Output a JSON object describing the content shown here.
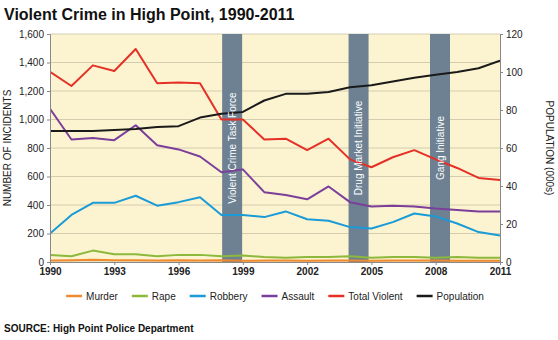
{
  "chart_data": {
    "type": "line",
    "title": "Violent Crime in High Point, 1990-2011",
    "y_label": "NUMBER OF INCIDENTS",
    "y2_label": "POPULATION (000s)",
    "source": "SOURCE: High Point Police Department",
    "x": [
      1990,
      1991,
      1992,
      1993,
      1994,
      1995,
      1996,
      1997,
      1998,
      1999,
      2000,
      2001,
      2002,
      2003,
      2004,
      2005,
      2006,
      2007,
      2008,
      2009,
      2010,
      2011
    ],
    "xlim": [
      1990,
      2011
    ],
    "xticks": [
      1990,
      1993,
      1996,
      1999,
      2002,
      2005,
      2008,
      2011
    ],
    "ylim": [
      0,
      1600
    ],
    "yticks": [
      0,
      200,
      400,
      600,
      800,
      {
        "value": 1000,
        "label": "1,000"
      },
      {
        "value": 1200,
        "label": "1,200"
      },
      {
        "value": 1400,
        "label": "1,400"
      },
      {
        "value": 1600,
        "label": "1,600"
      }
    ],
    "y2lim": [
      0,
      120
    ],
    "y2ticks": [
      0,
      20,
      40,
      60,
      80,
      100,
      120
    ],
    "grid": true,
    "legend": "bottom",
    "annotations": [
      {
        "text": "Violent Crime Task Force",
        "x": 1998.5
      },
      {
        "text": "Drug Market Initiative",
        "x": 2004.4
      },
      {
        "text": "Gang Initiative",
        "x": 2008.2
      }
    ],
    "series": [
      {
        "name": "Murder",
        "color": "#f08a2e",
        "values": [
          10,
          12,
          15,
          12,
          12,
          10,
          12,
          10,
          12,
          8,
          10,
          10,
          8,
          10,
          10,
          8,
          10,
          10,
          10,
          8,
          8,
          8
        ]
      },
      {
        "name": "Rape",
        "color": "#8cb83c",
        "values": [
          50,
          40,
          80,
          55,
          55,
          40,
          50,
          50,
          40,
          45,
          35,
          30,
          35,
          35,
          40,
          30,
          35,
          35,
          30,
          35,
          30,
          30
        ]
      },
      {
        "name": "Robbery",
        "color": "#1a9bd7",
        "values": [
          200,
          330,
          415,
          415,
          465,
          395,
          420,
          455,
          330,
          330,
          315,
          355,
          300,
          290,
          245,
          235,
          280,
          340,
          320,
          270,
          210,
          185
        ]
      },
      {
        "name": "Assault",
        "color": "#7b3f9b",
        "values": [
          1075,
          860,
          870,
          855,
          960,
          820,
          790,
          740,
          630,
          650,
          490,
          470,
          440,
          530,
          420,
          390,
          395,
          390,
          375,
          365,
          355,
          355
        ]
      },
      {
        "name": "Total Violent",
        "color": "#e53027",
        "values": [
          1335,
          1235,
          1380,
          1340,
          1495,
          1255,
          1260,
          1255,
          1000,
          1000,
          860,
          865,
          785,
          865,
          720,
          665,
          735,
          785,
          720,
          660,
          590,
          575
        ]
      },
      {
        "name": "Population",
        "color": "#1a1a1a",
        "axis": "y2",
        "values": [
          69,
          69,
          69,
          69.5,
          70,
          71,
          71.5,
          76,
          78,
          79,
          85,
          88.5,
          88.5,
          89.5,
          92,
          93,
          95,
          97,
          98.5,
          100,
          102,
          106
        ]
      }
    ]
  }
}
